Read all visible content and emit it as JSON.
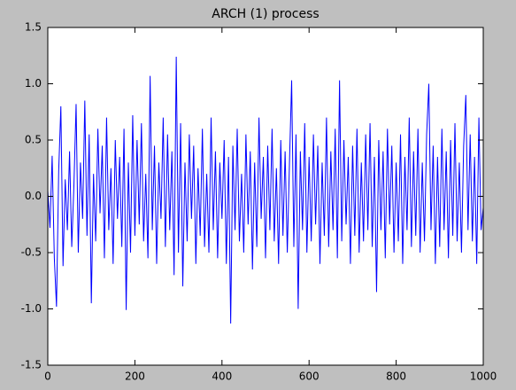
{
  "chart_data": {
    "type": "line",
    "title": "ARCH (1) process",
    "x": [
      0,
      5,
      10,
      15,
      20,
      25,
      30,
      35,
      40,
      45,
      50,
      55,
      60,
      65,
      70,
      75,
      80,
      85,
      90,
      95,
      100,
      105,
      110,
      115,
      120,
      125,
      130,
      135,
      140,
      145,
      150,
      155,
      160,
      165,
      170,
      175,
      180,
      185,
      190,
      195,
      200,
      205,
      210,
      215,
      220,
      225,
      230,
      235,
      240,
      245,
      250,
      255,
      260,
      265,
      270,
      275,
      280,
      285,
      290,
      295,
      300,
      305,
      310,
      315,
      320,
      325,
      330,
      335,
      340,
      345,
      350,
      355,
      360,
      365,
      370,
      375,
      380,
      385,
      390,
      395,
      400,
      405,
      410,
      415,
      420,
      425,
      430,
      435,
      440,
      445,
      450,
      455,
      460,
      465,
      470,
      475,
      480,
      485,
      490,
      495,
      500,
      505,
      510,
      515,
      520,
      525,
      530,
      535,
      540,
      545,
      550,
      555,
      560,
      565,
      570,
      575,
      580,
      585,
      590,
      595,
      600,
      605,
      610,
      615,
      620,
      625,
      630,
      635,
      640,
      645,
      650,
      655,
      660,
      665,
      670,
      675,
      680,
      685,
      690,
      695,
      700,
      705,
      710,
      715,
      720,
      725,
      730,
      735,
      740,
      745,
      750,
      755,
      760,
      765,
      770,
      775,
      780,
      785,
      790,
      795,
      800,
      805,
      810,
      815,
      820,
      825,
      830,
      835,
      840,
      845,
      850,
      855,
      860,
      865,
      870,
      875,
      880,
      885,
      890,
      895,
      900,
      905,
      910,
      915,
      920,
      925,
      930,
      935,
      940,
      945,
      950,
      955,
      960,
      965,
      970,
      975,
      980,
      985,
      990,
      995,
      1000
    ],
    "series": [
      {
        "color": "#0000ff",
        "values": [
          0.05,
          -0.28,
          0.36,
          -0.55,
          -0.98,
          0.22,
          0.8,
          -0.62,
          0.15,
          -0.3,
          0.4,
          -0.45,
          0.1,
          0.82,
          -0.5,
          0.3,
          -0.2,
          0.85,
          -0.35,
          0.55,
          -0.95,
          0.2,
          -0.4,
          0.6,
          -0.15,
          0.45,
          -0.55,
          0.7,
          -0.3,
          0.25,
          -0.6,
          0.5,
          -0.2,
          0.35,
          -0.45,
          0.6,
          -1.01,
          0.3,
          -0.5,
          0.72,
          -0.35,
          0.5,
          -0.25,
          0.65,
          -0.4,
          0.2,
          -0.55,
          1.07,
          -0.3,
          0.45,
          -0.6,
          0.3,
          -0.2,
          0.7,
          -0.45,
          0.55,
          -0.3,
          0.4,
          -0.7,
          1.24,
          -0.5,
          0.65,
          -0.8,
          0.3,
          -0.4,
          0.55,
          -0.2,
          0.45,
          -0.6,
          0.25,
          -0.35,
          0.6,
          -0.45,
          0.2,
          -0.5,
          0.7,
          -0.3,
          0.4,
          -0.55,
          0.3,
          -0.2,
          0.5,
          -0.6,
          0.35,
          -1.13,
          0.45,
          -0.3,
          0.6,
          -0.4,
          0.2,
          -0.5,
          0.55,
          -0.25,
          0.4,
          -0.65,
          0.3,
          -0.45,
          0.7,
          -0.2,
          0.35,
          -0.55,
          0.45,
          -0.3,
          0.6,
          -0.4,
          0.25,
          -0.6,
          0.5,
          -0.35,
          0.4,
          -0.5,
          0.3,
          1.03,
          -0.45,
          0.55,
          -1.0,
          0.4,
          -0.3,
          0.65,
          -0.5,
          0.35,
          -0.4,
          0.55,
          -0.25,
          0.45,
          -0.6,
          0.3,
          -0.35,
          0.7,
          -0.45,
          0.4,
          -0.3,
          0.6,
          -0.55,
          1.03,
          -0.4,
          0.5,
          -0.25,
          0.35,
          -0.6,
          0.45,
          -0.35,
          0.6,
          -0.5,
          0.3,
          -0.4,
          0.55,
          -0.3,
          0.65,
          -0.45,
          0.35,
          -0.85,
          0.5,
          -0.3,
          0.4,
          -0.55,
          0.6,
          -0.25,
          0.45,
          -0.5,
          0.3,
          -0.4,
          0.55,
          -0.6,
          0.35,
          -0.3,
          0.7,
          -0.45,
          0.4,
          -0.35,
          0.6,
          -0.5,
          0.3,
          -0.4,
          0.55,
          1.0,
          -0.3,
          0.45,
          -0.6,
          0.35,
          -0.45,
          0.6,
          -0.3,
          0.4,
          -0.55,
          0.5,
          -0.35,
          0.65,
          -0.4,
          0.3,
          -0.5,
          0.45,
          0.9,
          -0.3,
          0.55,
          -0.4,
          0.35,
          -0.6,
          0.7,
          -0.3,
          -0.1
        ]
      }
    ],
    "xlim": [
      0,
      1000
    ],
    "xticks": [
      0,
      200,
      400,
      600,
      800,
      1000
    ],
    "ylim": [
      -1.5,
      1.5
    ],
    "yticks": [
      -1.5,
      {
        "value": -1,
        "label": "-1.0"
      },
      -0.5,
      {
        "value": 0,
        "label": "0.0"
      },
      0.5,
      {
        "value": 1,
        "label": "1.0"
      },
      1.5
    ],
    "grid": false
  }
}
